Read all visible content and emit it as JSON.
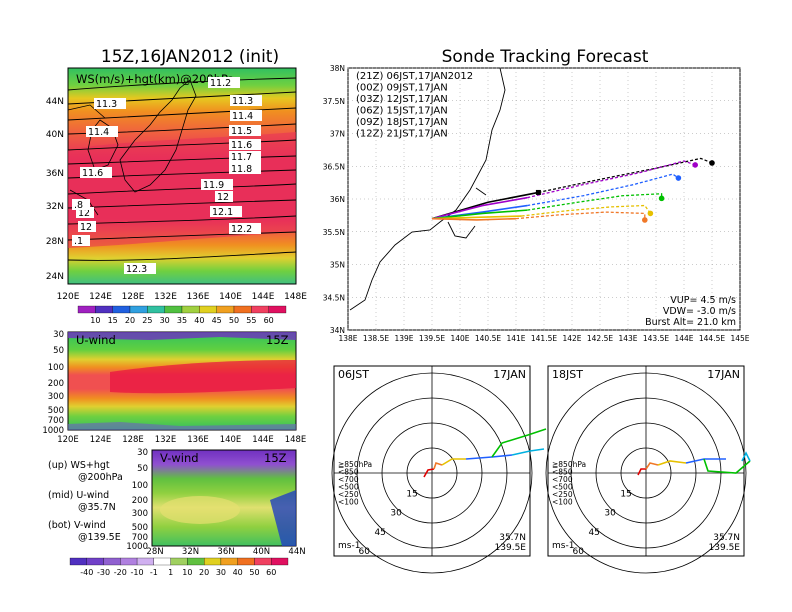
{
  "left_title": "15Z,16JAN2012 (init)",
  "right_title": "Sonde Tracking Forecast",
  "top_panel": {
    "label": "WS(m/s)+hgt(km)@200hPa",
    "x_ticks": [
      "120E",
      "124E",
      "128E",
      "132E",
      "136E",
      "140E",
      "144E",
      "148E"
    ],
    "y_ticks": [
      "44N",
      "40N",
      "36N",
      "32N",
      "28N",
      "24N"
    ],
    "contour_labels": [
      "11.2",
      "11.3",
      "11.3",
      "11.4",
      "11.4",
      "11.5",
      "11.6",
      "11.6",
      "11.7",
      "11.7",
      "11.8",
      "11.9",
      "12",
      "12.1",
      "12",
      "12",
      "12.2",
      "12.3",
      ".8",
      ".1"
    ],
    "colorbar": [
      "10",
      "15",
      "20",
      "25",
      "30",
      "35",
      "40",
      "45",
      "50",
      "55",
      "60"
    ]
  },
  "mid_panel": {
    "label": "U-wind",
    "time": "15Z",
    "y_ticks": [
      "30",
      "50",
      "100",
      "200",
      "300",
      "500",
      "700",
      "1000"
    ],
    "x_ticks": [
      "120E",
      "124E",
      "128E",
      "132E",
      "136E",
      "140E",
      "144E",
      "148E"
    ]
  },
  "bot_panel": {
    "label": "V-wind",
    "time": "15Z",
    "y_ticks": [
      "30",
      "50",
      "100",
      "200",
      "300",
      "500",
      "700",
      "1000"
    ],
    "x_ticks": [
      "28N",
      "32N",
      "36N",
      "40N",
      "44N"
    ],
    "colorbar": [
      "-40",
      "-30",
      "-20",
      "-10",
      "-1",
      "1",
      "10",
      "20",
      "30",
      "40",
      "50",
      "60"
    ]
  },
  "legend_notes": [
    {
      "a": "(up) WS+hgt",
      "b": "@200hPa"
    },
    {
      "a": "(mid) U-wind",
      "b": "@35.7N"
    },
    {
      "a": "(bot) V-wind",
      "b": "@139.5E"
    }
  ],
  "chart_data": {
    "type": "line",
    "title": "Sonde Tracking Forecast",
    "xlim": [
      138,
      145
    ],
    "ylim": [
      34,
      38
    ],
    "x_ticks": [
      "138E",
      "138.5E",
      "139E",
      "139.5E",
      "140E",
      "140.5E",
      "141E",
      "141.5E",
      "142E",
      "142.5E",
      "143E",
      "143.5E",
      "144E",
      "144.5E",
      "145E"
    ],
    "y_ticks": [
      "34N",
      "34.5N",
      "35N",
      "35.5N",
      "36N",
      "36.5N",
      "37N",
      "37.5N",
      "38N"
    ],
    "legend": [
      {
        "label": "(21Z)  06JST,17JAN2012",
        "color": "#000000"
      },
      {
        "label": "(00Z)  09JST,17JAN",
        "color": "#a000c8"
      },
      {
        "label": "(03Z)  12JST,17JAN",
        "color": "#2060ff"
      },
      {
        "label": "(06Z)  15JST,17JAN",
        "color": "#00c000"
      },
      {
        "label": "(09Z)  18JST,17JAN",
        "color": "#e6c000"
      },
      {
        "label": "(12Z)  21JST,17JAN",
        "color": "#f07828"
      }
    ],
    "launch": [
      139.5,
      35.7
    ],
    "series": [
      {
        "color": "#000000",
        "x": [
          139.5,
          140.5,
          141.4,
          142.5,
          143.5,
          144.3,
          144.5
        ],
        "y": [
          35.7,
          35.95,
          36.1,
          36.3,
          36.47,
          36.62,
          36.55
        ]
      },
      {
        "color": "#a000c8",
        "x": [
          139.5,
          140.4,
          141.2,
          142.2,
          143.2,
          144.0,
          144.2
        ],
        "y": [
          35.7,
          35.9,
          36.02,
          36.22,
          36.4,
          36.58,
          36.52
        ]
      },
      {
        "color": "#2060ff",
        "x": [
          139.5,
          140.4,
          141.2,
          142.2,
          143.1,
          143.8,
          143.9
        ],
        "y": [
          35.7,
          35.8,
          35.9,
          36.05,
          36.22,
          36.38,
          36.32
        ]
      },
      {
        "color": "#00c000",
        "x": [
          139.5,
          140.4,
          141.2,
          142.1,
          142.9,
          143.6,
          143.6
        ],
        "y": [
          35.7,
          35.78,
          35.83,
          35.95,
          36.05,
          36.08,
          36.01
        ]
      },
      {
        "color": "#e6c000",
        "x": [
          139.5,
          140.3,
          141.1,
          141.9,
          142.7,
          143.3,
          143.4
        ],
        "y": [
          35.7,
          35.72,
          35.74,
          35.82,
          35.88,
          35.9,
          35.78
        ]
      },
      {
        "color": "#f07828",
        "x": [
          139.5,
          140.3,
          141.0,
          141.8,
          142.6,
          143.3,
          143.3
        ],
        "y": [
          35.7,
          35.68,
          35.7,
          35.76,
          35.8,
          35.78,
          35.68
        ]
      }
    ],
    "info": [
      "VUP= 4.5 m/s",
      "VDW= -3.0 m/s",
      "Burst Alt= 21.0 km"
    ]
  },
  "hodo_left": {
    "time": "06JST",
    "date": "17JAN",
    "loc1": "35.7N",
    "loc2": "139.5E",
    "unit": "ms-1",
    "rings": [
      "15",
      "30",
      "45",
      "60"
    ],
    "levels": [
      {
        "l": "≧850hPa",
        "c": "#e00000"
      },
      {
        "l": "<850",
        "c": "#f07828"
      },
      {
        "l": "<700",
        "c": "#e6c000"
      },
      {
        "l": "<500",
        "c": "#00c000"
      },
      {
        "l": "<250",
        "c": "#00b0e0"
      },
      {
        "l": "<100",
        "c": "#2060ff"
      }
    ]
  },
  "hodo_right": {
    "time": "18JST",
    "date": "17JAN",
    "loc1": "35.7N",
    "loc2": "139.5E",
    "unit": "ms-1",
    "rings": [
      "15",
      "30",
      "45",
      "60"
    ]
  }
}
